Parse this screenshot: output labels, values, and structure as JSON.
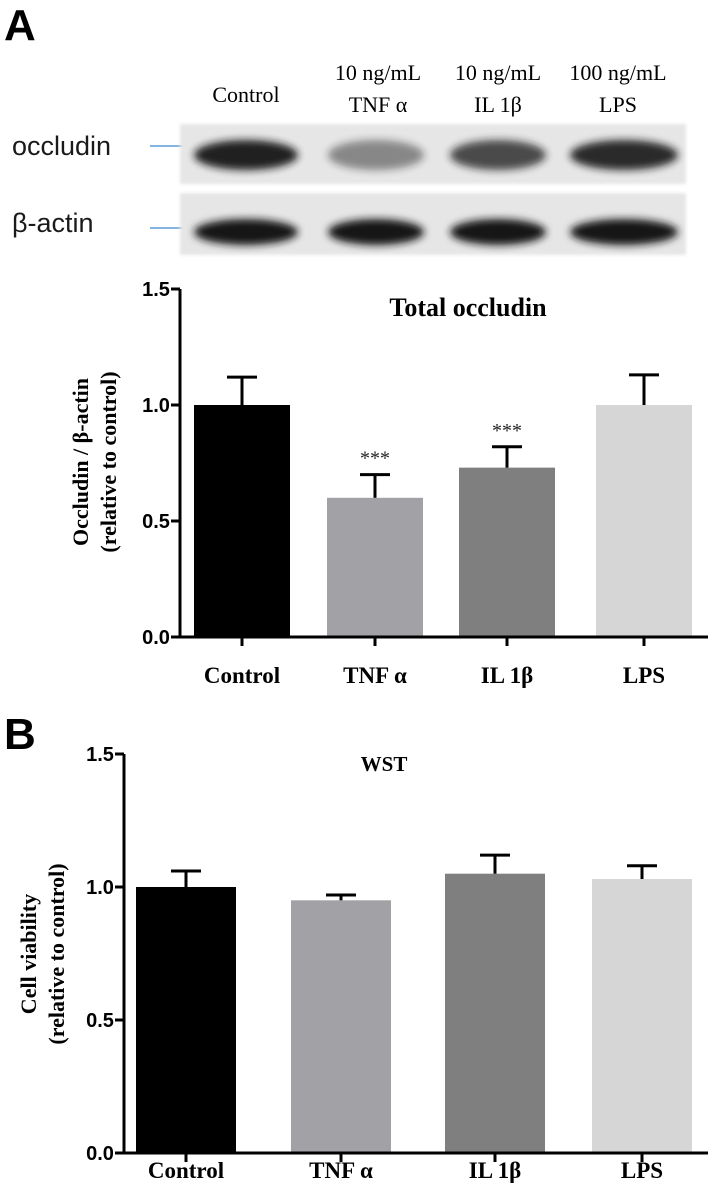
{
  "panels": {
    "a": {
      "letter": "A",
      "blot": {
        "lane_headers": [
          {
            "line1": "Control",
            "line2": ""
          },
          {
            "line1": "10 ng/mL",
            "line2": "TNF α"
          },
          {
            "line1": "10 ng/mL",
            "line2": "IL 1β"
          },
          {
            "line1": "100 ng/mL",
            "line2": "LPS"
          }
        ],
        "rows": [
          {
            "label": "occludin",
            "band_intensity": [
              0.95,
              0.45,
              0.75,
              0.9
            ]
          },
          {
            "label": "β-actin",
            "band_intensity": [
              1.0,
              1.0,
              1.0,
              1.0
            ]
          }
        ]
      }
    },
    "b": {
      "letter": "B"
    }
  },
  "colors": {
    "control": "#000000",
    "tnf": "#a2a2a6",
    "il1b": "#7f7f7f",
    "lps": "#d6d6d6",
    "axis": "#000000",
    "blot_bg": "#e6e6e6",
    "blot_band": "#141414",
    "marker_line": "#5b9bd5"
  },
  "chart_data": [
    {
      "type": "bar",
      "title": "Total occludin",
      "ylabel_line1": "Occludin / β-actin",
      "ylabel_line2": "(relative to control)",
      "xlabel": "",
      "categories": [
        "Control",
        "TNF α",
        "IL 1β",
        "LPS"
      ],
      "values": [
        1.0,
        0.6,
        0.73,
        1.0
      ],
      "errors": [
        0.12,
        0.1,
        0.09,
        0.13
      ],
      "annotations": [
        "",
        "***",
        "***",
        ""
      ],
      "ylim": [
        0,
        1.5
      ],
      "yticks": [
        0.0,
        0.5,
        1.0,
        1.5
      ],
      "ytick_labels": [
        "0.0",
        "0.5",
        "1.0",
        "1.5"
      ]
    },
    {
      "type": "bar",
      "title": "WST",
      "ylabel_line1": "Cell viability",
      "ylabel_line2": "(relative to control)",
      "xlabel": "",
      "categories": [
        "Control",
        "TNF α",
        "IL 1β",
        "LPS"
      ],
      "values": [
        1.0,
        0.95,
        1.05,
        1.03
      ],
      "errors": [
        0.06,
        0.02,
        0.07,
        0.05
      ],
      "annotations": [
        "",
        "",
        "",
        ""
      ],
      "ylim": [
        0,
        1.5
      ],
      "yticks": [
        0.0,
        0.5,
        1.0,
        1.5
      ],
      "ytick_labels": [
        "0.0",
        "0.5",
        "1.0",
        "1.5"
      ]
    }
  ]
}
